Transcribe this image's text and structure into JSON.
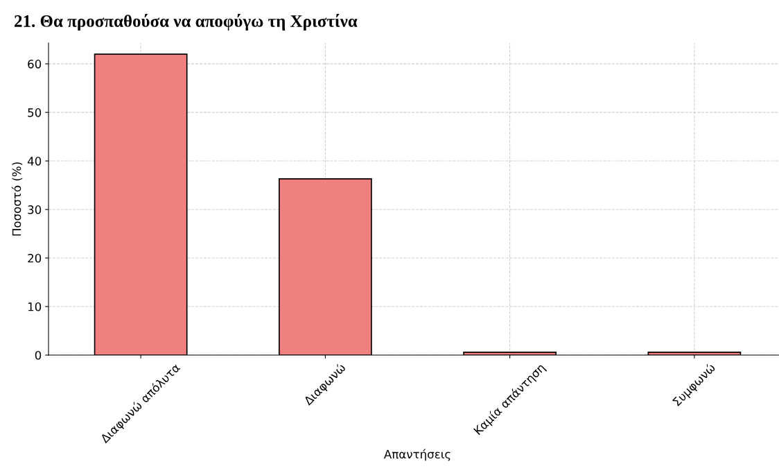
{
  "chart_data": {
    "type": "bar",
    "title": "21. Θα προσπαθούσα να αποφύγω τη Χριστίνα",
    "xlabel": "Απαντήσεις",
    "ylabel": "Ποσοστό (%)",
    "categories": [
      "Διαφωνώ απόλυτα",
      "Διαφωνώ",
      "Καμία απάντηση",
      "Συμφωνώ"
    ],
    "values": [
      62.0,
      36.3,
      0.6,
      0.6
    ],
    "color": "#f08080",
    "ylim": [
      0,
      64.3
    ],
    "yticks": [
      0,
      10,
      20,
      30,
      40,
      50,
      60
    ],
    "grid": true
  }
}
